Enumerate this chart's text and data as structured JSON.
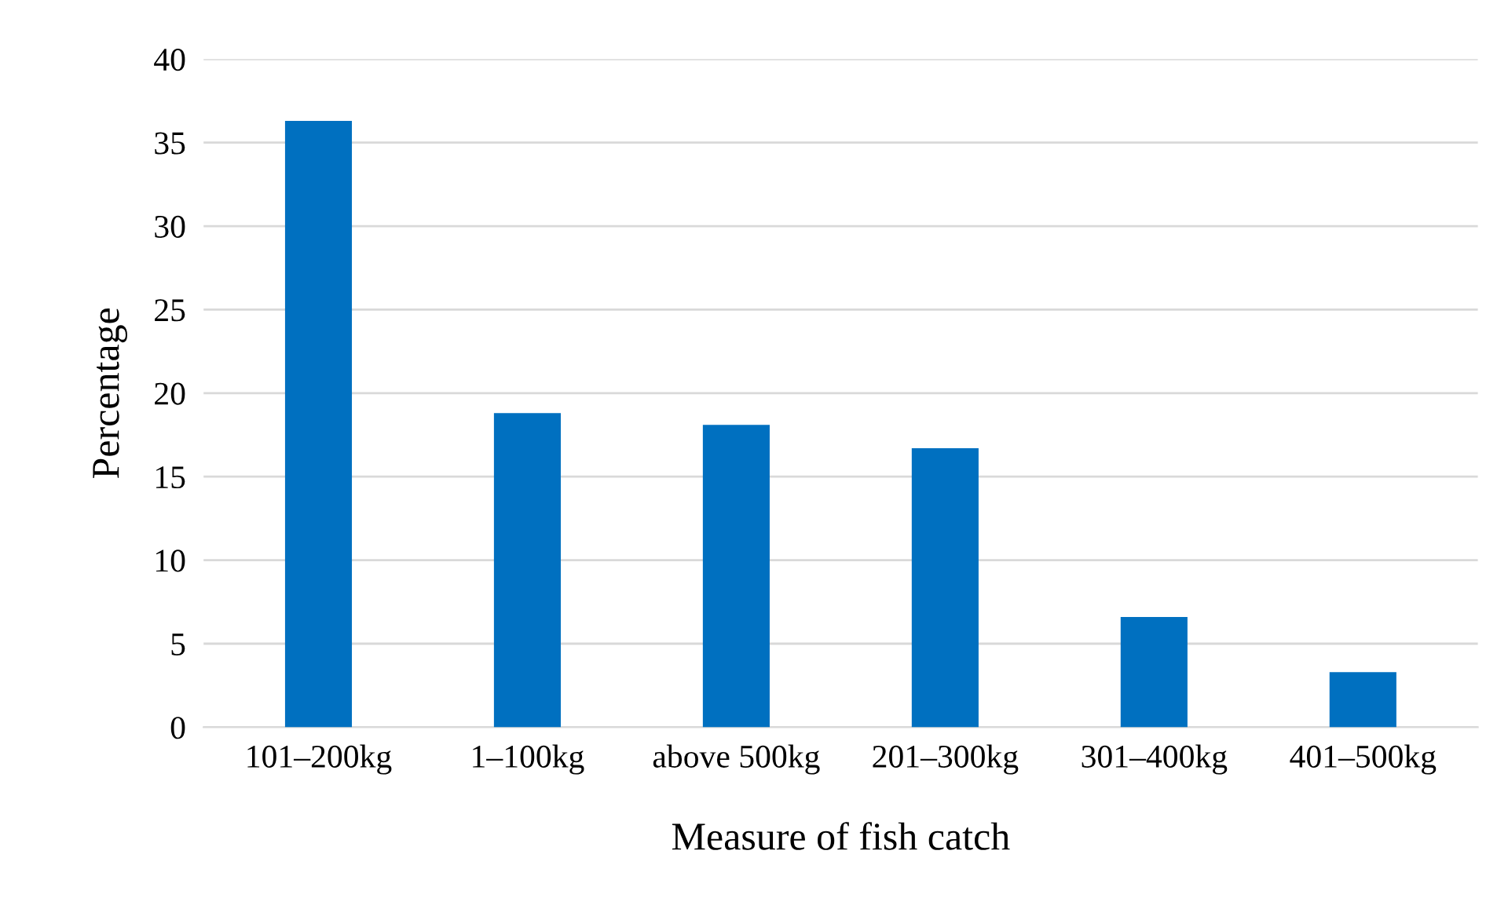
{
  "chart_data": {
    "type": "bar",
    "xlabel": "Measure of fish catch",
    "ylabel": "Percentage",
    "categories": [
      "101–200kg",
      "1–100kg",
      "above 500kg",
      "201–300kg",
      "301–400kg",
      "401–500kg"
    ],
    "values": [
      36.3,
      18.8,
      18.1,
      16.7,
      6.6,
      3.3
    ],
    "color": "#0070c0",
    "ylim": [
      0,
      40
    ],
    "yticks": [
      0,
      5,
      10,
      15,
      20,
      25,
      30,
      35,
      40
    ],
    "grid": "y"
  }
}
